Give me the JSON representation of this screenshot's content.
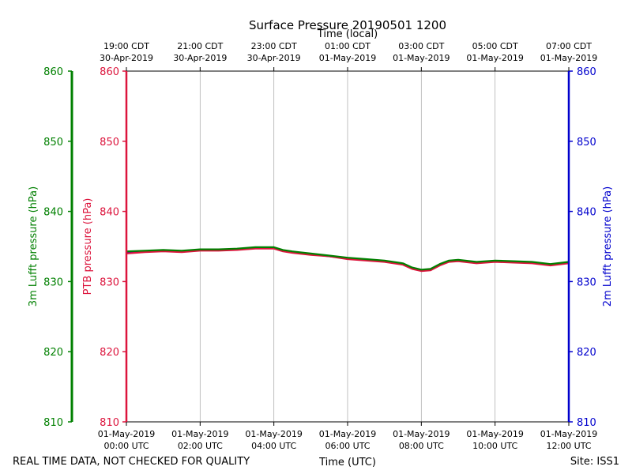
{
  "chart_data": {
    "type": "line",
    "title": "Surface Pressure 20190501 1200",
    "top_axis_label": "Time (local)",
    "xlabel": "Time (UTC)",
    "ylabel_left_outer": "3m Lufft pressure (hPa)",
    "ylabel_left_inner": "PTB pressure (hPa)",
    "ylabel_right": "2m Lufft pressure (hPa)",
    "ylim": [
      810,
      860
    ],
    "yticks": [
      "810",
      "820",
      "830",
      "840",
      "850",
      "860"
    ],
    "xlim_hours": [
      0,
      12
    ],
    "x_ticks": [
      {
        "h": 0,
        "date": "01-May-2019",
        "time": "00:00 UTC"
      },
      {
        "h": 2,
        "date": "01-May-2019",
        "time": "02:00 UTC"
      },
      {
        "h": 4,
        "date": "01-May-2019",
        "time": "04:00 UTC"
      },
      {
        "h": 6,
        "date": "01-May-2019",
        "time": "06:00 UTC"
      },
      {
        "h": 8,
        "date": "01-May-2019",
        "time": "08:00 UTC"
      },
      {
        "h": 10,
        "date": "01-May-2019",
        "time": "10:00 UTC"
      },
      {
        "h": 12,
        "date": "01-May-2019",
        "time": "12:00 UTC"
      }
    ],
    "top_ticks": [
      {
        "h": 0,
        "time": "19:00 CDT",
        "date": "30-Apr-2019"
      },
      {
        "h": 2,
        "time": "21:00 CDT",
        "date": "30-Apr-2019"
      },
      {
        "h": 4,
        "time": "23:00 CDT",
        "date": "30-Apr-2019"
      },
      {
        "h": 6,
        "time": "01:00 CDT",
        "date": "01-May-2019"
      },
      {
        "h": 8,
        "time": "03:00 CDT",
        "date": "01-May-2019"
      },
      {
        "h": 10,
        "time": "05:00 CDT",
        "date": "01-May-2019"
      },
      {
        "h": 12,
        "time": "07:00 CDT",
        "date": "01-May-2019"
      }
    ],
    "x_hours": [
      0,
      0.5,
      1,
      1.5,
      2,
      2.5,
      3,
      3.5,
      4,
      4.25,
      4.5,
      5,
      5.5,
      6,
      6.5,
      7,
      7.5,
      7.75,
      8,
      8.25,
      8.5,
      8.75,
      9,
      9.5,
      10,
      10.5,
      11,
      11.5,
      12
    ],
    "series": [
      {
        "name": "PTB pressure",
        "color": "#dc143c",
        "values": [
          834.0,
          834.2,
          834.3,
          834.2,
          834.4,
          834.4,
          834.5,
          834.7,
          834.7,
          834.3,
          834.1,
          833.8,
          833.6,
          833.2,
          833.0,
          832.8,
          832.4,
          831.8,
          831.5,
          831.6,
          832.3,
          832.8,
          832.9,
          832.6,
          832.8,
          832.7,
          832.6,
          832.3,
          832.6
        ]
      },
      {
        "name": "3m Lufft pressure",
        "color": "#008000",
        "values": [
          834.3,
          834.4,
          834.5,
          834.4,
          834.6,
          834.6,
          834.7,
          834.9,
          834.9,
          834.5,
          834.3,
          834.0,
          833.7,
          833.4,
          833.2,
          833.0,
          832.6,
          832.0,
          831.7,
          831.8,
          832.5,
          833.0,
          833.1,
          832.8,
          833.0,
          832.9,
          832.8,
          832.5,
          832.8
        ]
      },
      {
        "name": "2m Lufft pressure",
        "color": "#0000cd",
        "values": [
          834.2,
          834.3,
          834.4,
          834.3,
          834.5,
          834.5,
          834.6,
          834.8,
          834.8,
          834.4,
          834.2,
          833.9,
          833.6,
          833.3,
          833.1,
          832.9,
          832.5,
          831.9,
          831.6,
          831.7,
          832.4,
          832.9,
          833.0,
          832.7,
          832.9,
          832.8,
          832.7,
          832.4,
          832.7
        ]
      }
    ],
    "axis_colors": {
      "left_outer": "#008000",
      "left_inner": "#dc143c",
      "right": "#0000cd"
    },
    "grid_x": true
  },
  "footer": {
    "disclaimer": "REAL TIME DATA, NOT CHECKED FOR QUALITY",
    "site": "Site: ISS1"
  }
}
